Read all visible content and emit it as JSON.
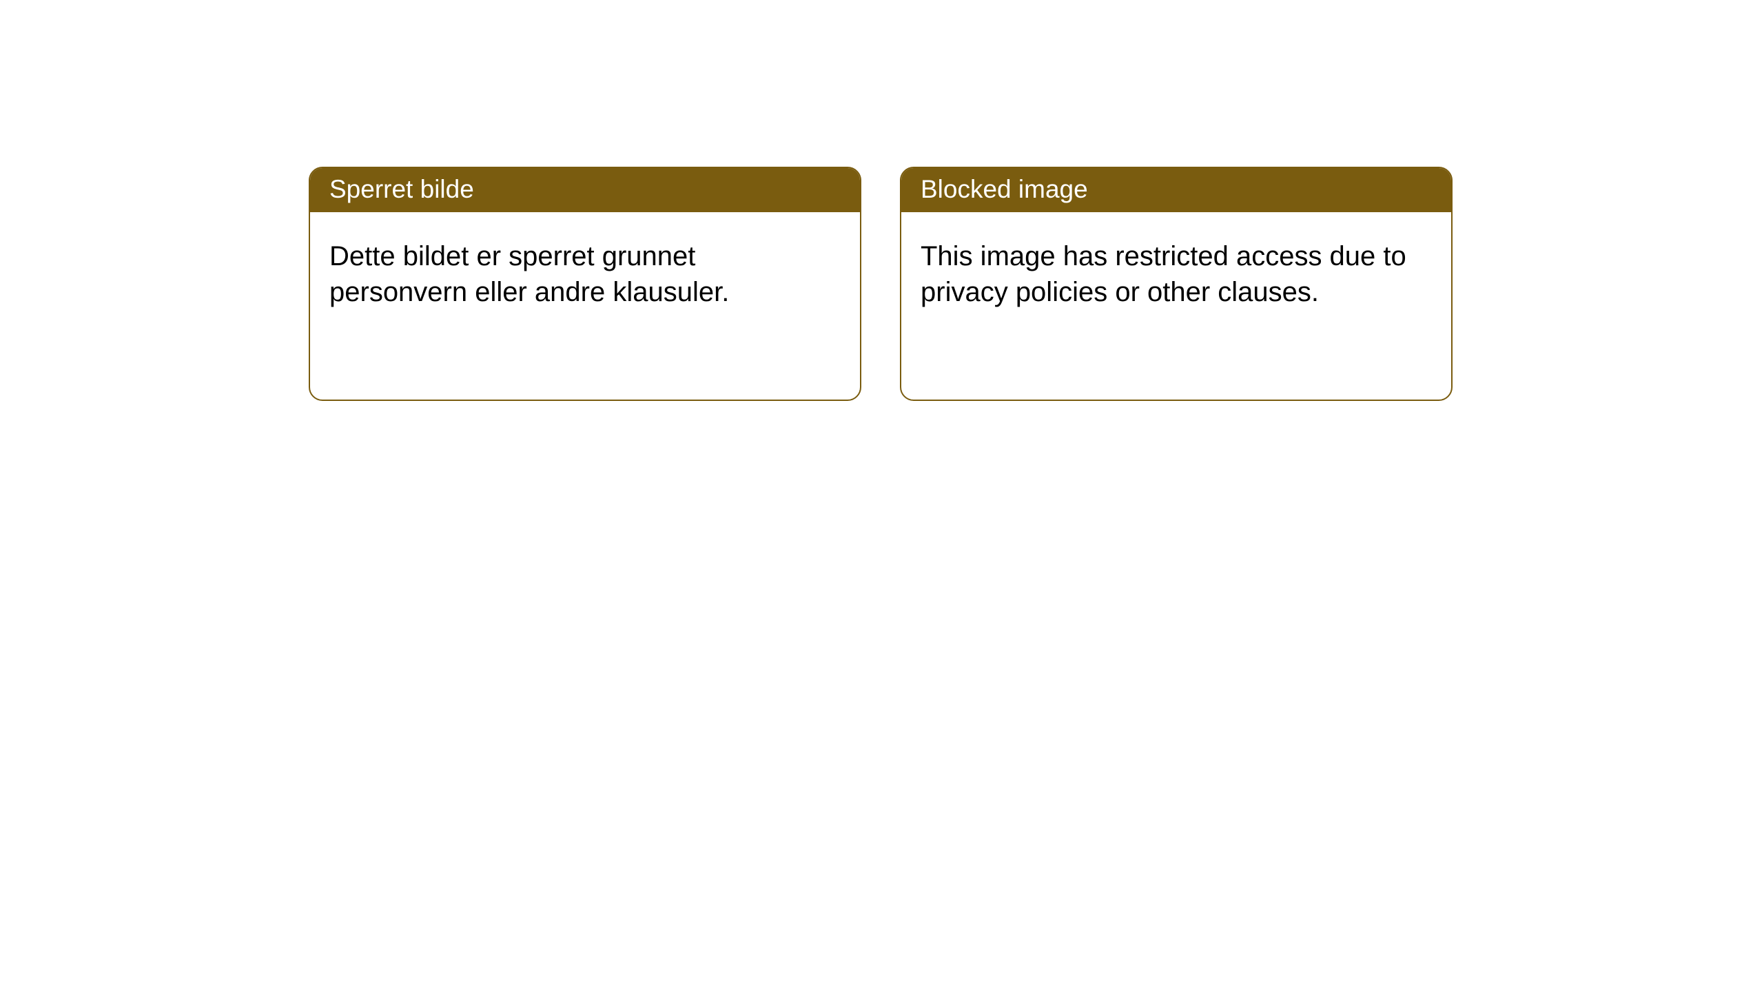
{
  "cards": [
    {
      "title": "Sperret bilde",
      "message": "Dette bildet er sperret grunnet personvern eller andre klausuler."
    },
    {
      "title": "Blocked image",
      "message": "This image has restricted access due to privacy policies or other clauses."
    }
  ],
  "styling": {
    "header_bg_color": "#7a5c0f",
    "header_text_color": "#ffffff",
    "body_text_color": "#000000",
    "card_border_color": "#7a5c0f",
    "card_bg_color": "#ffffff",
    "page_bg_color": "#ffffff",
    "card_border_radius": 20,
    "title_fontsize": 37,
    "body_fontsize": 40
  }
}
